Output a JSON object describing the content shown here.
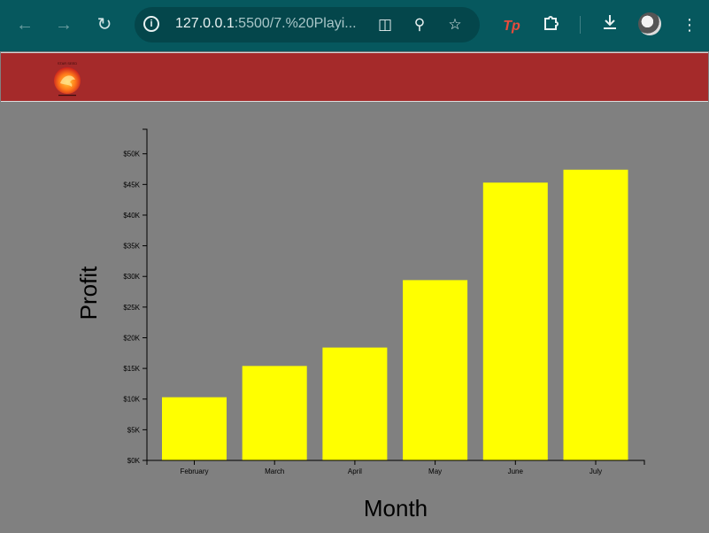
{
  "browser": {
    "url_host": "127.0.0.1",
    "url_rest": ":5500/7.%20Playi...",
    "icons": {
      "back": "back-arrow-icon",
      "forward": "forward-arrow-icon",
      "reload": "reload-icon",
      "site_info": "info-icon",
      "translate": "translate-icon",
      "zoom": "zoom-icon",
      "bookmark": "star-icon",
      "extension_tp": "tp-extension-icon",
      "extensions": "puzzle-icon",
      "download": "download-icon",
      "profile": "avatar",
      "menu": "kebab-menu-icon"
    },
    "tp_label": "Tp"
  },
  "header": {
    "background": "#a52a2a",
    "logo_text": "STAR SEED"
  },
  "chart_data": {
    "type": "bar",
    "categories": [
      "February",
      "March",
      "April",
      "May",
      "June",
      "July"
    ],
    "values": [
      10300,
      15400,
      18400,
      29400,
      45300,
      47400
    ],
    "xlabel": "Month",
    "ylabel": "Profit",
    "ylim": [
      0,
      54000
    ],
    "yticks": [
      0,
      5000,
      10000,
      15000,
      20000,
      25000,
      30000,
      35000,
      40000,
      45000,
      50000
    ],
    "ytick_labels": [
      "$0K",
      "$5K",
      "$10K",
      "$15K",
      "$20K",
      "$25K",
      "$30K",
      "$35K",
      "$40K",
      "$45K",
      "$50K"
    ],
    "bar_color": "#ffff00",
    "background": "#808080",
    "grid": false
  }
}
